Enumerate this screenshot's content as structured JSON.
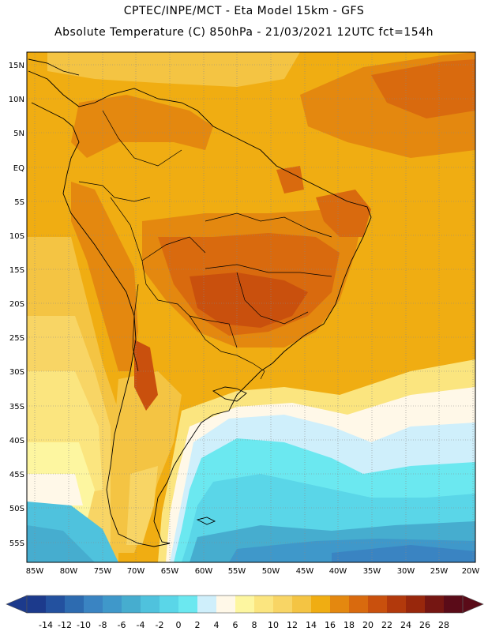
{
  "header": {
    "line1": "CPTEC/INPE/MCT  -   Eta Model 15km  -  GFS",
    "line2": "Absolute Temperature (C) 850hPa - 21/03/2021 12UTC fct=154h"
  },
  "map": {
    "lat_labels": [
      "15N",
      "10N",
      "5N",
      "EQ",
      "5S",
      "10S",
      "15S",
      "20S",
      "25S",
      "30S",
      "35S",
      "40S",
      "45S",
      "50S",
      "55S"
    ],
    "lon_labels": [
      "85W",
      "80W",
      "75W",
      "70W",
      "65W",
      "60W",
      "55W",
      "50W",
      "45W",
      "40W",
      "35W",
      "30W",
      "25W",
      "20W"
    ]
  },
  "colorbar": {
    "labels": [
      "-14",
      "-12",
      "-10",
      "-8",
      "-6",
      "-4",
      "-2",
      "0",
      "2",
      "4",
      "6",
      "8",
      "10",
      "12",
      "14",
      "16",
      "18",
      "20",
      "22",
      "24",
      "26",
      "28"
    ],
    "colors": [
      "#1c3a8c",
      "#23519f",
      "#2d6bb0",
      "#3a84c2",
      "#3f98ca",
      "#46adcf",
      "#4fc2dd",
      "#5ad6e8",
      "#6be8f0",
      "#cfeffb",
      "#fff8e8",
      "#fdf6a0",
      "#fbe57f",
      "#f8d565",
      "#f4c443",
      "#f0ad12",
      "#e4880f",
      "#d96a0e",
      "#c9500d",
      "#b2390c",
      "#98270c",
      "#751612",
      "#5a0b18"
    ]
  }
}
